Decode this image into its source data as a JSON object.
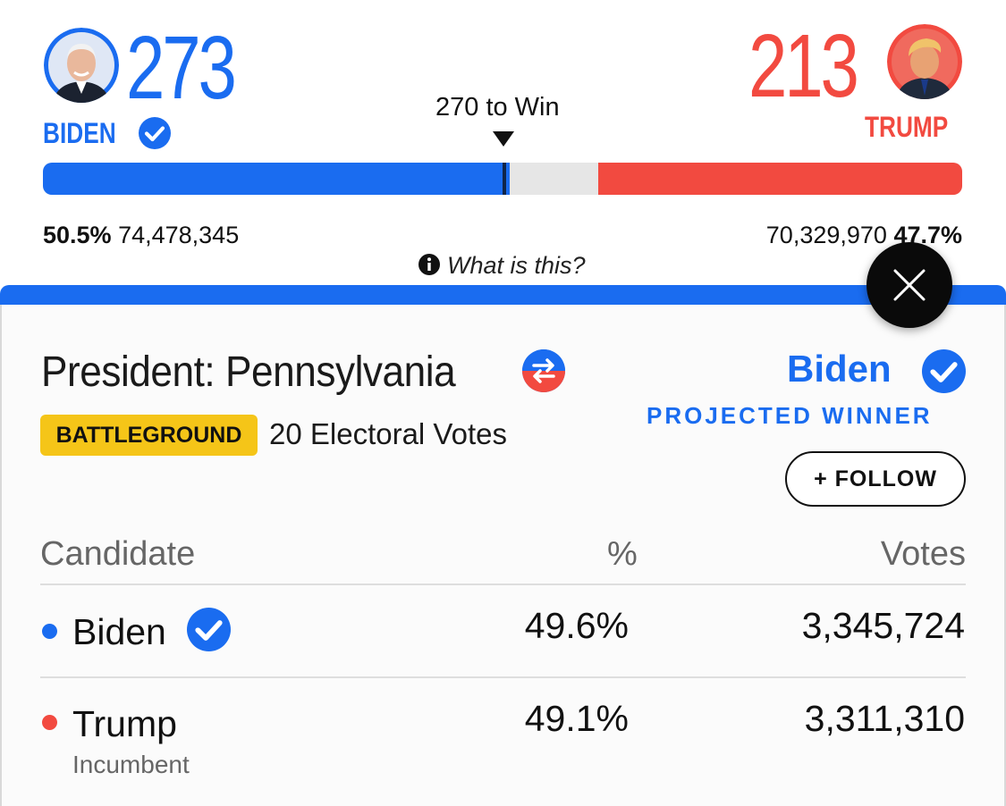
{
  "header": {
    "left": {
      "name": "BIDEN",
      "electoral_votes": "273",
      "percent": "50.5%",
      "popular_votes": "74,478,345",
      "color": "#1a6cf0",
      "avatar_icon": "biden-avatar"
    },
    "right": {
      "name": "TRUMP",
      "electoral_votes": "213",
      "percent": "47.7%",
      "popular_votes": "70,329,970",
      "color": "#f24a40",
      "avatar_icon": "trump-avatar"
    },
    "threshold_label": "270 to Win",
    "info_label": "What is this?",
    "bar": {
      "blue_share": 273,
      "red_share": 213,
      "total": 538
    }
  },
  "race": {
    "title": "President: Pennsylvania",
    "flip_icon": "flip-arrows-icon",
    "badge": "BATTLEGROUND",
    "electoral_votes_label": "20 Electoral Votes",
    "winner_name": "Biden",
    "winner_label": "PROJECTED WINNER",
    "follow_label": "+ FOLLOW"
  },
  "table": {
    "headers": {
      "candidate": "Candidate",
      "percent": "%",
      "votes": "Votes"
    },
    "rows": [
      {
        "name": "Biden",
        "percent": "49.6%",
        "votes": "3,345,724",
        "dot_color": "#1a6cf0",
        "winner": true,
        "sub": ""
      },
      {
        "name": "Trump",
        "percent": "49.1%",
        "votes": "3,311,310",
        "dot_color": "#f24a40",
        "winner": false,
        "sub": "Incumbent"
      }
    ]
  }
}
